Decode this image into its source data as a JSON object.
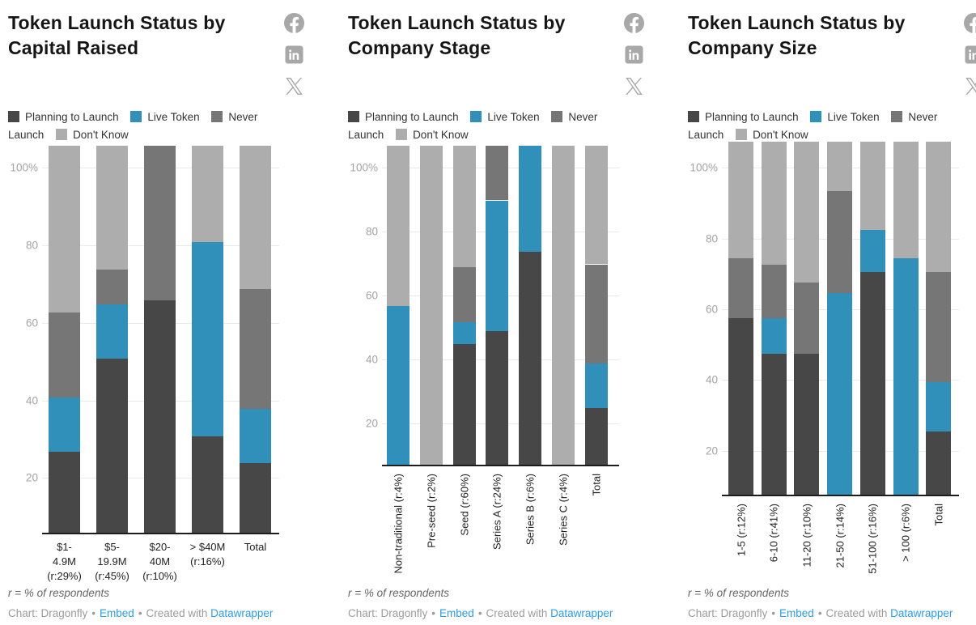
{
  "footer": {
    "note": "r = % of respondents",
    "credit_label": "Chart: Dragonfly",
    "separator": "•",
    "embed_label": "Embed",
    "created_with": "Created with",
    "datawrapper_label": "Datawrapper"
  },
  "social": {
    "icon_color": "#a8a8a8",
    "items": [
      "facebook",
      "linkedin",
      "x"
    ]
  },
  "chart_data": [
    {
      "type": "bar",
      "subtype": "stacked-100",
      "title": "Token Launch Status by Capital Raised",
      "legend": [
        {
          "label": "Planning to Launch",
          "color": "#474747"
        },
        {
          "label": "Live Token",
          "color": "#3090ba"
        },
        {
          "label": "Never Launch",
          "color": "#767676"
        },
        {
          "label": "Don't Know",
          "color": "#adadad"
        }
      ],
      "y_axis": {
        "min": 0,
        "max": 100,
        "ticks": [
          {
            "value": 100,
            "label": "100%"
          },
          {
            "value": 80,
            "label": "80"
          },
          {
            "value": 60,
            "label": "60"
          },
          {
            "value": 40,
            "label": "40"
          },
          {
            "value": 20,
            "label": "20"
          }
        ]
      },
      "categories": [
        "$1-4.9M (r:29%)",
        "$5-19.9M (r:45%)",
        "$20-40M (r:10%)",
        "> $40M (r:16%)",
        "Total"
      ],
      "x_label_lines": [
        [
          "$1-",
          "4.9M",
          "(r:29%)"
        ],
        [
          "$5-",
          "19.9M",
          "(r:45%)"
        ],
        [
          "$20-",
          "40M",
          "(r:10%)"
        ],
        [
          "> $40M",
          "(r:16%)"
        ],
        [
          "Total"
        ]
      ],
      "series": [
        {
          "name": "Planning to Launch",
          "values": [
            21,
            45,
            60,
            25,
            18
          ]
        },
        {
          "name": "Live Token",
          "values": [
            14,
            14,
            0,
            50,
            14
          ]
        },
        {
          "name": "Never Launch",
          "values": [
            22,
            9,
            40,
            0,
            31
          ]
        },
        {
          "name": "Don't Know",
          "values": [
            43,
            32,
            0,
            25,
            37
          ]
        }
      ]
    },
    {
      "type": "bar",
      "subtype": "stacked-100",
      "title": "Token Launch Status by Company Stage",
      "legend": [
        {
          "label": "Planning to Launch",
          "color": "#474747"
        },
        {
          "label": "Live Token",
          "color": "#3090ba"
        },
        {
          "label": "Never Launch",
          "color": "#767676"
        },
        {
          "label": "Don't Know",
          "color": "#adadad"
        }
      ],
      "y_axis": {
        "min": 0,
        "max": 100,
        "ticks": [
          {
            "value": 100,
            "label": "100%"
          },
          {
            "value": 80,
            "label": "80"
          },
          {
            "value": 60,
            "label": "60"
          },
          {
            "value": 40,
            "label": "40"
          },
          {
            "value": 20,
            "label": "20"
          }
        ]
      },
      "categories": [
        "Non-traditional (r:4%)",
        "Pre-seed (r:2%)",
        "Seed (r:60%)",
        "Series A (r:24%)",
        "Series B (r:6%)",
        "Series C (r:4%)",
        "Total"
      ],
      "series": [
        {
          "name": "Planning to Launch",
          "values": [
            0,
            0,
            38,
            42,
            67,
            0,
            18
          ]
        },
        {
          "name": "Live Token",
          "values": [
            50,
            0,
            7,
            41,
            33,
            0,
            14
          ]
        },
        {
          "name": "Never Launch",
          "values": [
            0,
            0,
            17,
            17,
            0,
            0,
            31
          ]
        },
        {
          "name": "Don't Know",
          "values": [
            50,
            100,
            38,
            0,
            0,
            100,
            37
          ]
        }
      ]
    },
    {
      "type": "bar",
      "subtype": "stacked-100",
      "title": "Token Launch Status by Company Size",
      "legend": [
        {
          "label": "Planning to Launch",
          "color": "#474747"
        },
        {
          "label": "Live Token",
          "color": "#3090ba"
        },
        {
          "label": "Never Launch",
          "color": "#767676"
        },
        {
          "label": "Don't Know",
          "color": "#adadad"
        }
      ],
      "y_axis": {
        "min": 0,
        "max": 100,
        "ticks": [
          {
            "value": 100,
            "label": "100%"
          },
          {
            "value": 80,
            "label": "80"
          },
          {
            "value": 60,
            "label": "60"
          },
          {
            "value": 40,
            "label": "40"
          },
          {
            "value": 20,
            "label": "20"
          }
        ]
      },
      "categories": [
        "1-5 (r:12%)",
        "6-10 (r:41%)",
        "11-20 (r:10%)",
        "21-50 (r:14%)",
        "51-100 (r:16%)",
        "> 100 (r:6%)",
        "Total"
      ],
      "series": [
        {
          "name": "Planning to Launch",
          "values": [
            50,
            40,
            40,
            0,
            63,
            0,
            18
          ]
        },
        {
          "name": "Live Token",
          "values": [
            0,
            10,
            0,
            57,
            12,
            67,
            14
          ]
        },
        {
          "name": "Never Launch",
          "values": [
            17,
            15,
            20,
            29,
            0,
            0,
            31
          ]
        },
        {
          "name": "Don't Know",
          "values": [
            33,
            35,
            40,
            14,
            25,
            33,
            37
          ]
        }
      ]
    }
  ]
}
